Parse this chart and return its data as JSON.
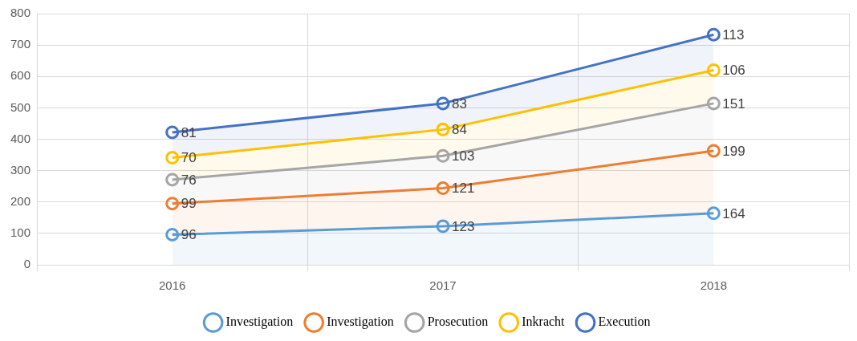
{
  "chart_data": {
    "type": "area",
    "stacked": true,
    "data_labels": true,
    "categories": [
      "2016",
      "2017",
      "2018"
    ],
    "series": [
      {
        "name": "Investigation",
        "color": "#5b9bd5",
        "values": [
          96,
          123,
          164
        ]
      },
      {
        "name": "Investigation",
        "color": "#ed7d31",
        "values": [
          99,
          121,
          199
        ]
      },
      {
        "name": "Prosecution",
        "color": "#a5a5a5",
        "values": [
          76,
          103,
          151
        ]
      },
      {
        "name": "Inkracht",
        "color": "#ffc000",
        "values": [
          70,
          84,
          106
        ]
      },
      {
        "name": "Execution",
        "color": "#4472c4",
        "values": [
          81,
          83,
          113
        ]
      }
    ],
    "ylim": [
      0,
      800
    ],
    "yticks": [
      0,
      100,
      200,
      300,
      400,
      500,
      600,
      700,
      800
    ],
    "grid": true,
    "legend": "bottom",
    "marker": "circle",
    "line_style": "solid"
  }
}
